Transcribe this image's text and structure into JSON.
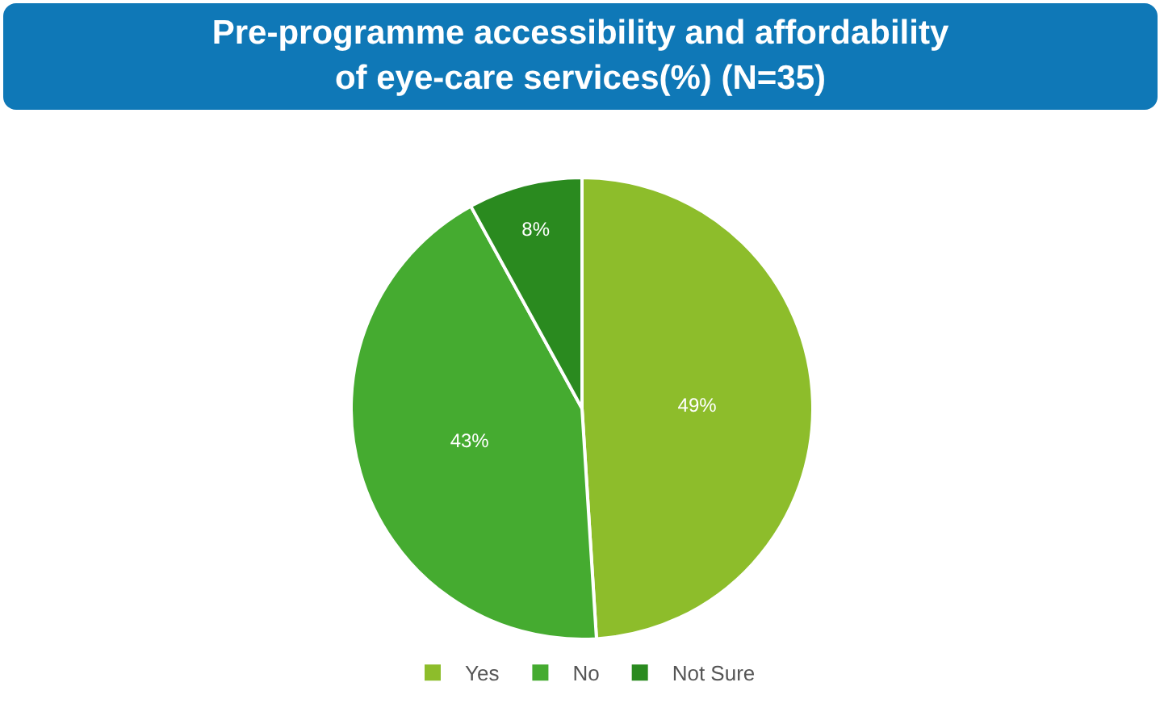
{
  "chart_data": {
    "type": "pie",
    "title": "Pre-programme accessibility and affordability of eye-care services(%) (N=35)",
    "categories": [
      "Yes",
      "No",
      "Not Sure"
    ],
    "values": [
      49,
      43,
      8
    ],
    "value_labels": [
      "49%",
      "43%",
      "8%"
    ],
    "colors": [
      "#8dbd2b",
      "#45ab30",
      "#2a8a1f"
    ],
    "legend": "bottom"
  }
}
